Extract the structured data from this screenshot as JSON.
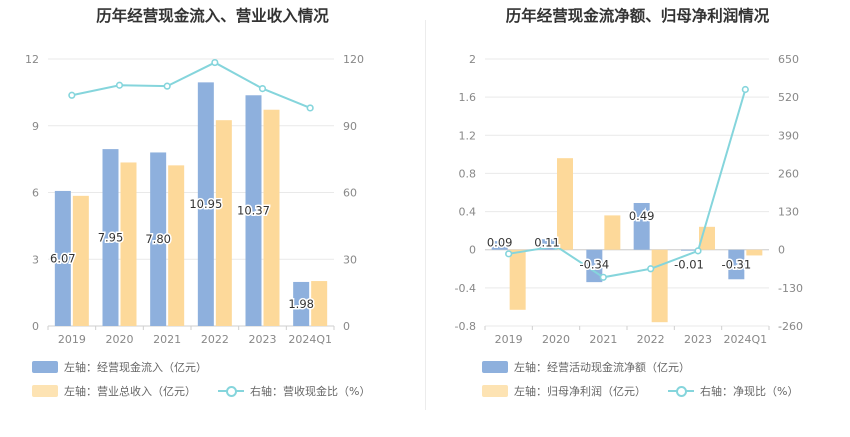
{
  "colors": {
    "bar_primary": "#8eb0dd",
    "bar_secondary": "#fdd99a",
    "line": "#85d5dc",
    "axis_text": "#888888",
    "grid": "#e9e9e9"
  },
  "charts": [
    {
      "title": "历年经营现金流入、营业收入情况",
      "legend": [
        {
          "label": "左轴：经营现金流入（亿元）",
          "kind": "bar-primary"
        },
        {
          "label": "左轴：营业总收入（亿元）",
          "kind": "bar-secondary"
        },
        {
          "label": "右轴：营收现金比（%）",
          "kind": "line"
        }
      ]
    },
    {
      "title": "历年经营现金流净额、归母净利润情况",
      "legend": [
        {
          "label": "左轴：经营活动现金流净额（亿元）",
          "kind": "bar-primary"
        },
        {
          "label": "左轴：归母净利润（亿元）",
          "kind": "bar-secondary"
        },
        {
          "label": "右轴：净现比（%）",
          "kind": "line"
        }
      ]
    }
  ],
  "chart_data": [
    {
      "type": "bar",
      "title": "历年经营现金流入、营业收入情况",
      "categories": [
        "2019",
        "2020",
        "2021",
        "2022",
        "2023",
        "2024Q1"
      ],
      "left_ticks": [
        0,
        3,
        6,
        9,
        12
      ],
      "right_ticks": [
        0,
        30,
        60,
        90,
        120
      ],
      "ylim": [
        0,
        12
      ],
      "ylim_right": [
        0,
        120
      ],
      "grid": true,
      "series": [
        {
          "name": "左轴：经营现金流入（亿元）",
          "axis": "left",
          "values": [
            6.07,
            7.95,
            7.8,
            10.95,
            10.37,
            1.98
          ],
          "labels": [
            "6.07",
            "7.95",
            "7.80",
            "10.95",
            "10.37",
            "1.98"
          ]
        },
        {
          "name": "左轴：营业总收入（亿元）",
          "axis": "left",
          "values": [
            5.85,
            7.35,
            7.22,
            9.25,
            9.72,
            2.02
          ]
        },
        {
          "name": "右轴：营收现金比（%）",
          "axis": "right",
          "type": "line",
          "values": [
            103.7,
            108.2,
            107.8,
            118.4,
            106.7,
            98.0
          ]
        }
      ]
    },
    {
      "type": "bar",
      "title": "历年经营现金流净额、归母净利润情况",
      "categories": [
        "2019",
        "2020",
        "2021",
        "2022",
        "2023",
        "2024Q1"
      ],
      "left_ticks": [
        "-0.8",
        "-0.4",
        "0",
        "0.4",
        "0.8",
        "1.2",
        "1.6",
        "2"
      ],
      "right_ticks": [
        -260,
        -130,
        0,
        130,
        260,
        390,
        520,
        650
      ],
      "ylim": [
        -0.8,
        2
      ],
      "ylim_right": [
        -260,
        650
      ],
      "grid": true,
      "series": [
        {
          "name": "左轴：经营活动现金流净额（亿元）",
          "axis": "left",
          "values": [
            0.09,
            0.11,
            -0.34,
            0.49,
            -0.01,
            -0.31
          ],
          "labels": [
            "0.09",
            "0.11",
            "-0.34",
            "0.49",
            "-0.01",
            "-0.31"
          ]
        },
        {
          "name": "左轴：归母净利润（亿元）",
          "axis": "left",
          "values": [
            -0.63,
            0.96,
            0.36,
            -0.76,
            0.24,
            -0.06
          ]
        },
        {
          "name": "右轴：净现比（%）",
          "axis": "right",
          "type": "line",
          "values": [
            -14,
            12,
            -94,
            -65,
            -4,
            546
          ]
        }
      ]
    }
  ]
}
